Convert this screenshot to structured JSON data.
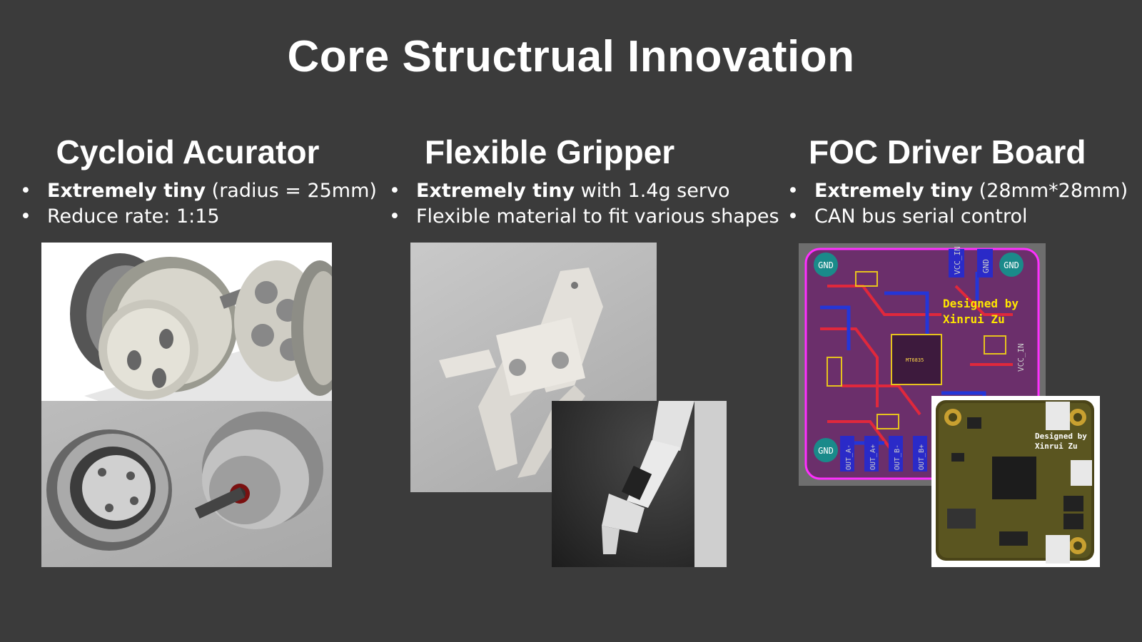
{
  "slide": {
    "title": "Core Structrual Innovation"
  },
  "columns": [
    {
      "heading": "Cycloid Acurator",
      "bullets": [
        {
          "bold": "Extremely tiny",
          "rest": " (radius = 25mm)"
        },
        {
          "bold": "",
          "rest": "Reduce rate: 1:15"
        }
      ]
    },
    {
      "heading": "Flexible Gripper",
      "bullets": [
        {
          "bold": "Extremely tiny",
          "rest": " with 1.4g servo"
        },
        {
          "bold": "",
          "rest": "Flexible material to fit various shapes"
        }
      ]
    },
    {
      "heading": "FOC Driver Board",
      "bullets": [
        {
          "bold": "Extremely tiny",
          "rest": " (28mm*28mm)"
        },
        {
          "bold": "",
          "rest": "CAN bus serial control"
        }
      ]
    }
  ],
  "pcb": {
    "designed_by": "Designed by",
    "designer": "Xinrui Zu",
    "gnd": "GND",
    "labels": [
      "VCC_IN",
      "GND",
      "VCC_IN",
      "OUT_A-",
      "OUT_A+",
      "OUT_B-",
      "OUT_B+",
      "MT6835"
    ]
  }
}
